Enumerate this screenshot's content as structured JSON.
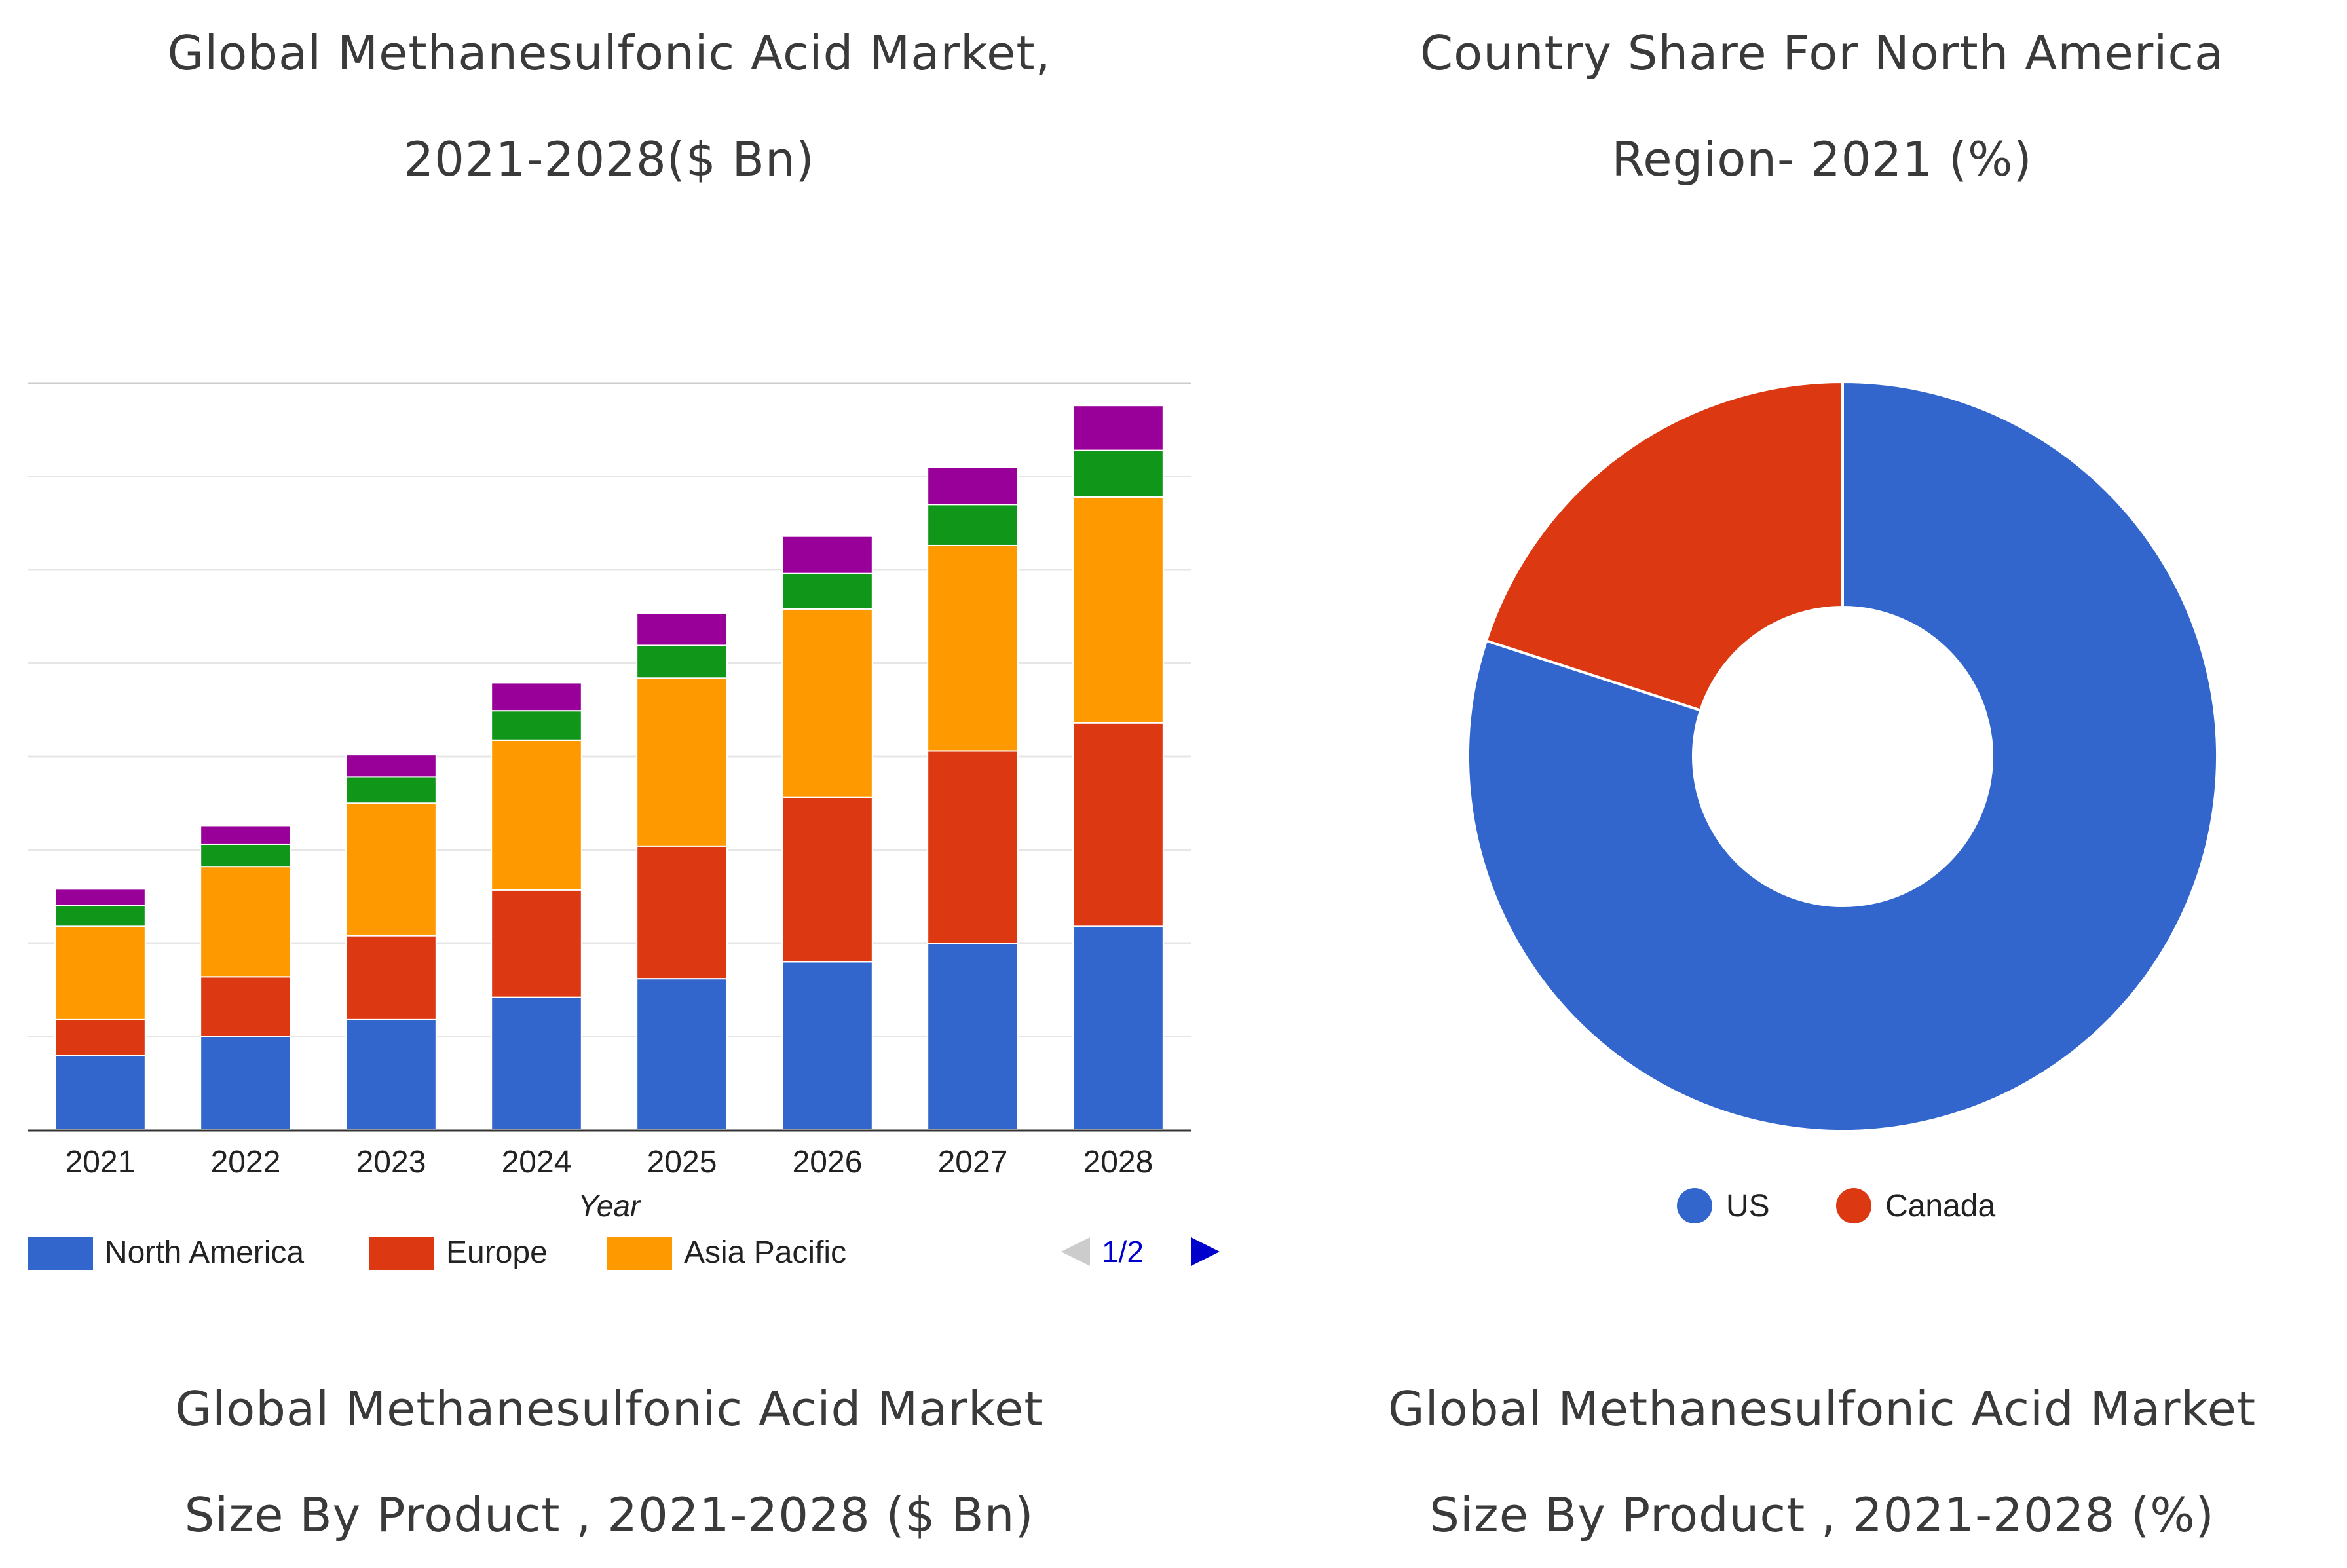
{
  "titles": {
    "left": [
      "Global Methanesulfonic Acid Market,",
      "2021-2028($ Bn)"
    ],
    "right": [
      "Country Share For North America",
      "Region- 2021 (%)"
    ],
    "bottom_left": [
      "Global Methanesulfonic Acid Market",
      "Size By Product , 2021-2028 ($ Bn)"
    ],
    "bottom_right": [
      "Global Methanesulfonic Acid Market",
      "Size By Product , 2021-2028 (%)"
    ]
  },
  "pager": {
    "label": "1/2"
  },
  "chart_data": [
    {
      "type": "bar",
      "stacked": true,
      "title": "Global Methanesulfonic Acid Market, 2021-2028($ Bn)",
      "xlabel": "Year",
      "ylabel": "",
      "ylim": [
        0,
        8
      ],
      "grid": true,
      "legend_position": "bottom",
      "categories": [
        "2021",
        "2022",
        "2023",
        "2024",
        "2025",
        "2026",
        "2027",
        "2028"
      ],
      "series": [
        {
          "name": "North America",
          "color": "#3366cc",
          "values": [
            0.8,
            1.0,
            1.18,
            1.42,
            1.62,
            1.8,
            2.0,
            2.18
          ]
        },
        {
          "name": "Europe",
          "color": "#dc3912",
          "values": [
            0.38,
            0.64,
            0.9,
            1.15,
            1.42,
            1.76,
            2.06,
            2.18
          ]
        },
        {
          "name": "Asia Pacific",
          "color": "#ff9900",
          "values": [
            1.0,
            1.18,
            1.42,
            1.6,
            1.8,
            2.02,
            2.2,
            2.42
          ]
        },
        {
          "name": "",
          "color": "#109618",
          "values": [
            0.22,
            0.24,
            0.28,
            0.32,
            0.35,
            0.38,
            0.44,
            0.5
          ]
        },
        {
          "name": "",
          "color": "#990099",
          "values": [
            0.18,
            0.2,
            0.24,
            0.3,
            0.34,
            0.4,
            0.4,
            0.48
          ]
        }
      ],
      "legend_visible": [
        "North America",
        "Europe",
        "Asia Pacific"
      ]
    },
    {
      "type": "pie",
      "donut": true,
      "title": "Country Share For North America Region- 2021 (%)",
      "legend_position": "bottom",
      "slices": [
        {
          "label": "US",
          "value": 80,
          "color": "#3366cc"
        },
        {
          "label": "Canada",
          "value": 20,
          "color": "#dc3912"
        }
      ]
    }
  ]
}
